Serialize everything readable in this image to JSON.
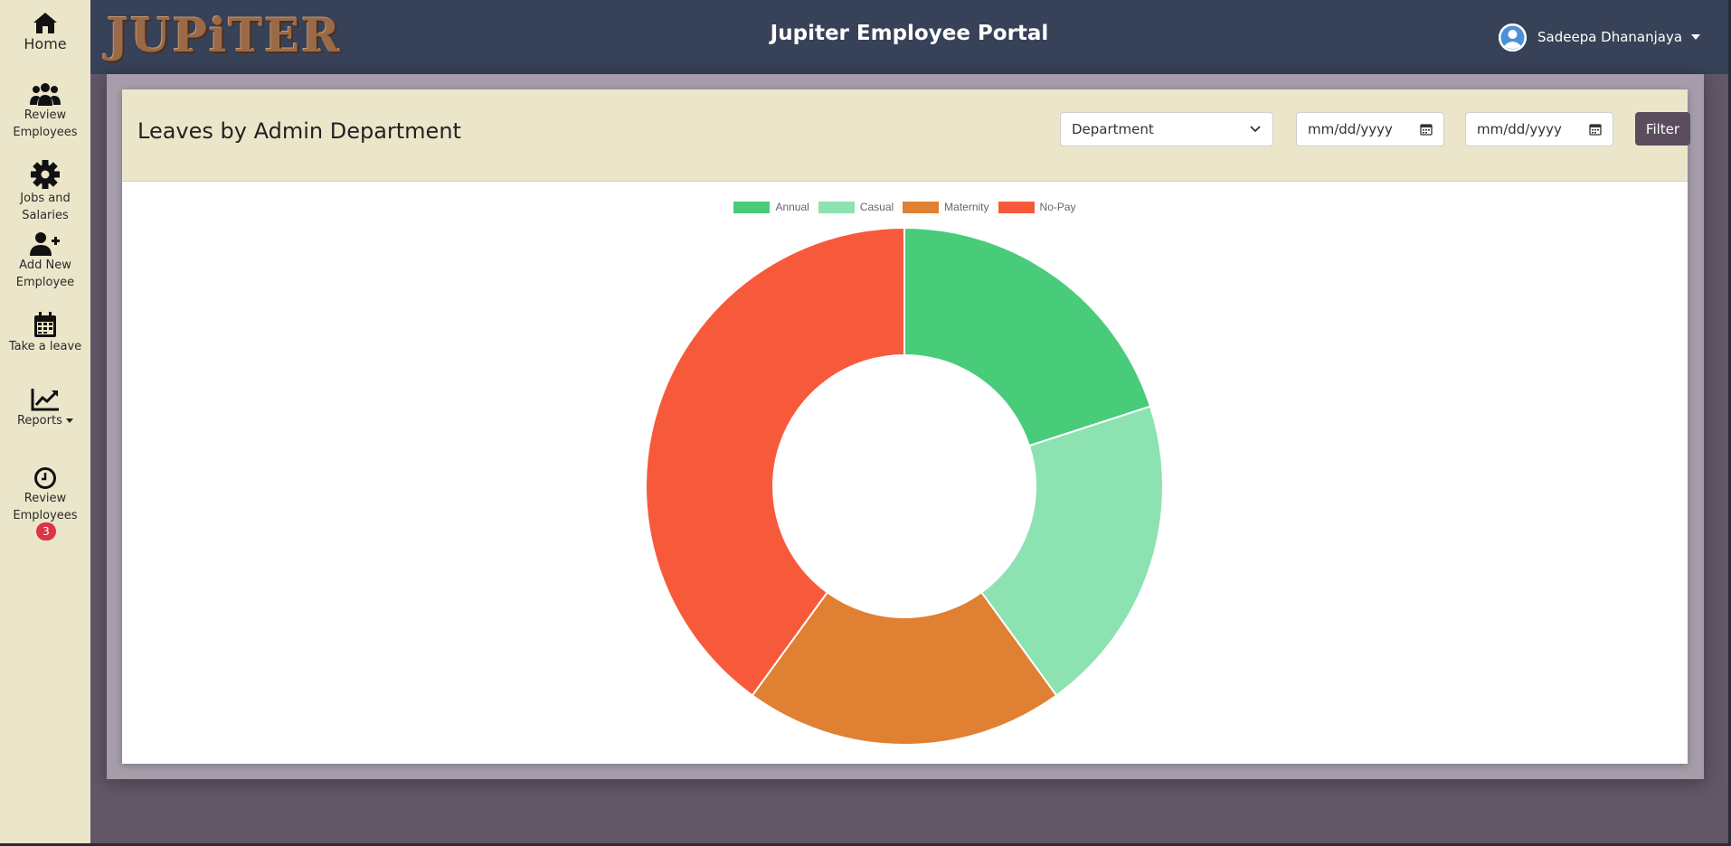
{
  "sidebar": {
    "items": [
      {
        "label": "Home",
        "icon": "home-icon"
      },
      {
        "label": "Review Employees",
        "icon": "users-icon"
      },
      {
        "label": "Jobs and Salaries",
        "icon": "gear-icon"
      },
      {
        "label": "Add New Employee",
        "icon": "user-plus-icon"
      },
      {
        "label": "Take a leave",
        "icon": "calendar-icon"
      },
      {
        "label": "Reports",
        "icon": "chart-line-icon"
      },
      {
        "label": "Review Employees",
        "icon": "clock-icon",
        "badge": "3"
      }
    ]
  },
  "header": {
    "logo": "JUPiTER",
    "title": "Jupiter Employee Portal",
    "user_name": "Sadeepa Dhananjaya"
  },
  "card": {
    "title": "Leaves by Admin Department",
    "department_placeholder": "Department",
    "date_from_placeholder": "mm/dd/yyyy",
    "date_to_placeholder": "mm/dd/yyyy",
    "filter_label": "Filter"
  },
  "colors": {
    "sidebar_bg": "#ebe6ca",
    "header_bg": "#374157",
    "filter_button": "#5b4d5e",
    "badge": "#dc3545"
  },
  "chart_data": {
    "type": "pie",
    "variant": "doughnut",
    "labels": [
      "Annual",
      "Casual",
      "Maternity",
      "No-Pay"
    ],
    "values": [
      1,
      1,
      1,
      2
    ],
    "colors": [
      "#48cc7a",
      "#8ce2b0",
      "#e08033",
      "#f75a3b"
    ],
    "title": "",
    "legend_position": "top"
  }
}
